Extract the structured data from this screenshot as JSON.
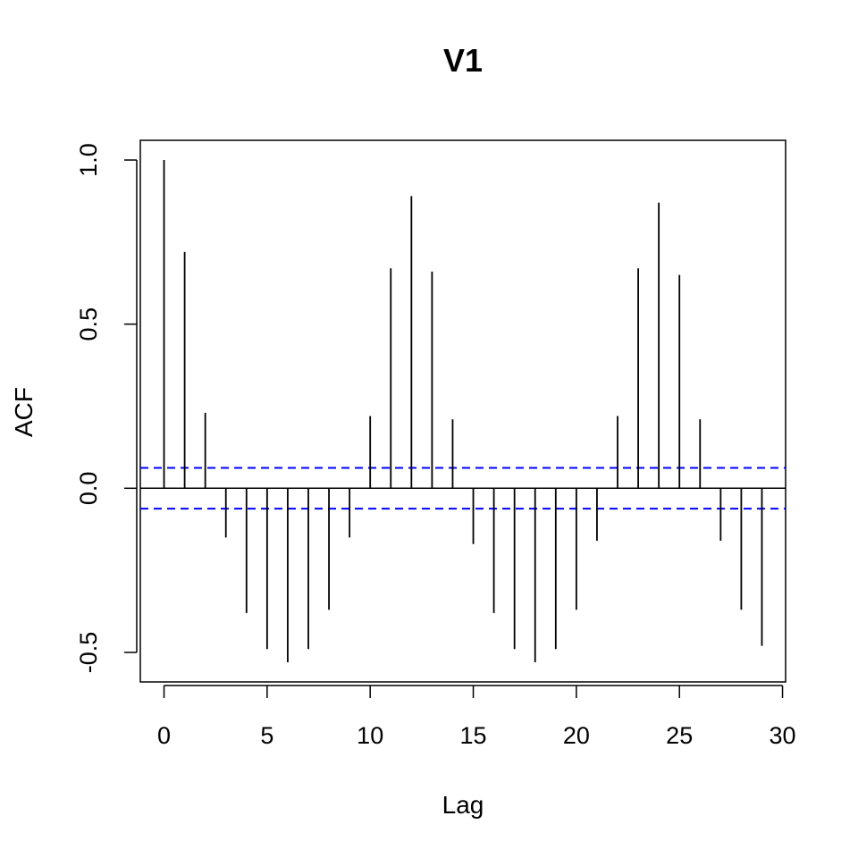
{
  "chart_data": {
    "type": "bar",
    "title": "V1",
    "xlabel": "Lag",
    "ylabel": "ACF",
    "xlim": [
      -1.15,
      30.15
    ],
    "ylim": [
      -0.59,
      1.06
    ],
    "x_ticks": [
      0,
      5,
      10,
      15,
      20,
      25,
      30
    ],
    "x_tick_labels": [
      "0",
      "5",
      "10",
      "15",
      "20",
      "25",
      "30"
    ],
    "y_ticks": [
      -0.5,
      0.0,
      0.5,
      1.0
    ],
    "y_tick_labels": [
      "-0.5",
      "0.0",
      "0.5",
      "1.0"
    ],
    "lags": [
      0,
      1,
      2,
      3,
      4,
      5,
      6,
      7,
      8,
      9,
      10,
      11,
      12,
      13,
      14,
      15,
      16,
      17,
      18,
      19,
      20,
      21,
      22,
      23,
      24,
      25,
      26,
      27,
      28,
      29
    ],
    "acf": [
      1.0,
      0.72,
      0.23,
      -0.15,
      -0.38,
      -0.49,
      -0.53,
      -0.49,
      -0.37,
      -0.15,
      0.22,
      0.67,
      0.89,
      0.66,
      0.21,
      -0.17,
      -0.38,
      -0.49,
      -0.53,
      -0.49,
      -0.37,
      -0.16,
      0.22,
      0.67,
      0.87,
      0.65,
      0.21,
      -0.16,
      -0.37,
      -0.48
    ],
    "ci_bounds": [
      0.062,
      -0.062
    ],
    "ci_color": "#0000ff",
    "line_color": "#000000",
    "grid": false,
    "legend": "none"
  }
}
